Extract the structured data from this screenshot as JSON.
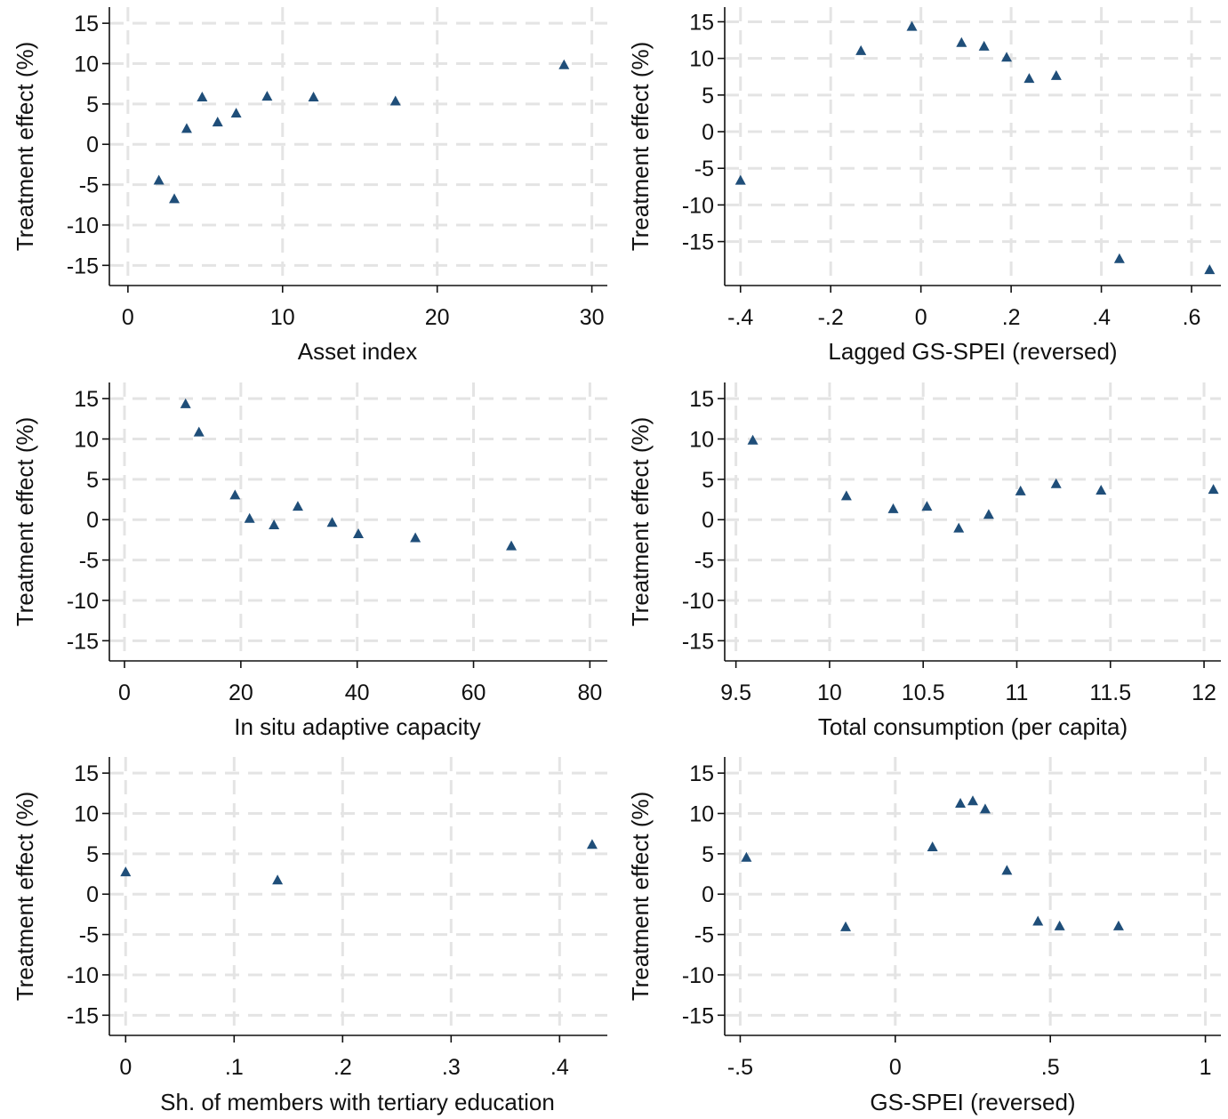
{
  "chart_data": [
    {
      "type": "scatter",
      "xlabel": "Asset index",
      "ylabel": "Treatment effect (%)",
      "xticks": [
        0,
        10,
        20,
        30
      ],
      "xtick_labels": [
        "0",
        "10",
        "20",
        "30"
      ],
      "yticks": [
        15,
        10,
        5,
        0,
        -5,
        -10,
        -15
      ],
      "ytick_labels": [
        "15",
        "10",
        "5",
        "0",
        "-5",
        "-10",
        "-15"
      ],
      "xlim": [
        -1.2,
        31.0
      ],
      "ylim": [
        -17.5,
        17
      ],
      "grid": true,
      "marker": "triangle",
      "points": [
        {
          "x": 2.0,
          "y": -4.5
        },
        {
          "x": 3.0,
          "y": -6.8
        },
        {
          "x": 3.8,
          "y": 1.9
        },
        {
          "x": 4.8,
          "y": 5.8
        },
        {
          "x": 5.8,
          "y": 2.7
        },
        {
          "x": 7.0,
          "y": 3.8
        },
        {
          "x": 9.0,
          "y": 5.9
        },
        {
          "x": 12.0,
          "y": 5.8
        },
        {
          "x": 17.3,
          "y": 5.3
        },
        {
          "x": 28.2,
          "y": 9.8
        }
      ]
    },
    {
      "type": "scatter",
      "xlabel": "Lagged GS-SPEI (reversed)",
      "ylabel": "Treatment effect (%)",
      "xticks": [
        -0.4,
        -0.2,
        0,
        0.2,
        0.4,
        0.6
      ],
      "xtick_labels": [
        "-.4",
        "-.2",
        "0",
        ".2",
        ".4",
        ".6"
      ],
      "yticks": [
        15,
        10,
        5,
        0,
        -5,
        -10,
        -15
      ],
      "ytick_labels": [
        "15",
        "10",
        "5",
        "0",
        "-5",
        "-10",
        "-15"
      ],
      "xlim": [
        -0.435,
        0.665
      ],
      "ylim": [
        -21,
        17
      ],
      "grid": true,
      "marker": "triangle",
      "points": [
        {
          "x": -0.4,
          "y": -6.7
        },
        {
          "x": -0.133,
          "y": 11.0
        },
        {
          "x": -0.02,
          "y": 14.3
        },
        {
          "x": 0.09,
          "y": 12.1
        },
        {
          "x": 0.14,
          "y": 11.6
        },
        {
          "x": 0.19,
          "y": 10.1
        },
        {
          "x": 0.24,
          "y": 7.2
        },
        {
          "x": 0.3,
          "y": 7.6
        },
        {
          "x": 0.44,
          "y": -17.4
        },
        {
          "x": 0.64,
          "y": -18.9
        }
      ]
    },
    {
      "type": "scatter",
      "xlabel": "In situ adaptive capacity",
      "ylabel": "Treatment effect (%)",
      "xticks": [
        0,
        20,
        40,
        60,
        80
      ],
      "xtick_labels": [
        "0",
        "20",
        "40",
        "60",
        "80"
      ],
      "yticks": [
        15,
        10,
        5,
        0,
        -5,
        -10,
        -15
      ],
      "ytick_labels": [
        "15",
        "10",
        "5",
        "0",
        "-5",
        "-10",
        "-15"
      ],
      "xlim": [
        -2.6,
        83.0
      ],
      "ylim": [
        -17.5,
        17
      ],
      "grid": true,
      "marker": "triangle",
      "points": [
        {
          "x": 10.5,
          "y": 14.3
        },
        {
          "x": 12.8,
          "y": 10.8
        },
        {
          "x": 19.0,
          "y": 3.0
        },
        {
          "x": 21.5,
          "y": 0.1
        },
        {
          "x": 25.7,
          "y": -0.7
        },
        {
          "x": 29.8,
          "y": 1.6
        },
        {
          "x": 35.7,
          "y": -0.4
        },
        {
          "x": 40.2,
          "y": -1.8
        },
        {
          "x": 50.0,
          "y": -2.3
        },
        {
          "x": 66.5,
          "y": -3.3
        }
      ]
    },
    {
      "type": "scatter",
      "xlabel": "Total consumption (per capita)",
      "ylabel": "Treatment effect (%)",
      "xticks": [
        9.5,
        10,
        10.5,
        11,
        11.5,
        12
      ],
      "xtick_labels": [
        "9.5",
        "10",
        "10.5",
        "11",
        "11.5",
        "12"
      ],
      "yticks": [
        15,
        10,
        5,
        0,
        -5,
        -10,
        -15
      ],
      "ytick_labels": [
        "15",
        "10",
        "5",
        "0",
        "-5",
        "-10",
        "-15"
      ],
      "xlim": [
        9.44,
        12.09
      ],
      "ylim": [
        -17.5,
        17
      ],
      "grid": true,
      "marker": "triangle",
      "points": [
        {
          "x": 9.59,
          "y": 9.8
        },
        {
          "x": 10.09,
          "y": 2.9
        },
        {
          "x": 10.34,
          "y": 1.3
        },
        {
          "x": 10.52,
          "y": 1.6
        },
        {
          "x": 10.69,
          "y": -1.1
        },
        {
          "x": 10.85,
          "y": 0.6
        },
        {
          "x": 11.02,
          "y": 3.5
        },
        {
          "x": 11.21,
          "y": 4.4
        },
        {
          "x": 11.45,
          "y": 3.6
        },
        {
          "x": 12.05,
          "y": 3.7
        }
      ]
    },
    {
      "type": "scatter",
      "xlabel": "Sh. of members with tertiary education",
      "ylabel": "Treatment effect (%)",
      "xticks": [
        0,
        0.1,
        0.2,
        0.3,
        0.4
      ],
      "xtick_labels": [
        "0",
        ".1",
        ".2",
        ".3",
        ".4"
      ],
      "yticks": [
        15,
        10,
        5,
        0,
        -5,
        -10,
        -15
      ],
      "ytick_labels": [
        "15",
        "10",
        "5",
        "0",
        "-5",
        "-10",
        "-15"
      ],
      "xlim": [
        -0.015,
        0.444
      ],
      "ylim": [
        -17.5,
        17
      ],
      "grid": true,
      "marker": "triangle",
      "points": [
        {
          "x": 0.0,
          "y": 2.7
        },
        {
          "x": 0.14,
          "y": 1.7
        },
        {
          "x": 0.43,
          "y": 6.1
        }
      ]
    },
    {
      "type": "scatter",
      "xlabel": "GS-SPEI (reversed)",
      "ylabel": "Treatment effect (%)",
      "xticks": [
        -0.5,
        0,
        0.5,
        1
      ],
      "xtick_labels": [
        "-.5",
        "0",
        ".5",
        "1"
      ],
      "yticks": [
        15,
        10,
        5,
        0,
        -5,
        -10,
        -15
      ],
      "ytick_labels": [
        "15",
        "10",
        "5",
        "0",
        "-5",
        "-10",
        "-15"
      ],
      "xlim": [
        -0.55,
        1.05
      ],
      "ylim": [
        -17.5,
        17
      ],
      "grid": true,
      "marker": "triangle",
      "points": [
        {
          "x": -0.48,
          "y": 4.5
        },
        {
          "x": -0.16,
          "y": -4.1
        },
        {
          "x": 0.12,
          "y": 5.8
        },
        {
          "x": 0.21,
          "y": 11.2
        },
        {
          "x": 0.25,
          "y": 11.5
        },
        {
          "x": 0.29,
          "y": 10.5
        },
        {
          "x": 0.36,
          "y": 2.9
        },
        {
          "x": 0.46,
          "y": -3.4
        },
        {
          "x": 0.53,
          "y": -4.0
        },
        {
          "x": 0.72,
          "y": -4.0
        }
      ]
    }
  ],
  "colors": {
    "marker": "#1f4e79",
    "grid": "#e4e4e4",
    "axis": "#111111",
    "text": "#111111",
    "background": "#ffffff"
  }
}
